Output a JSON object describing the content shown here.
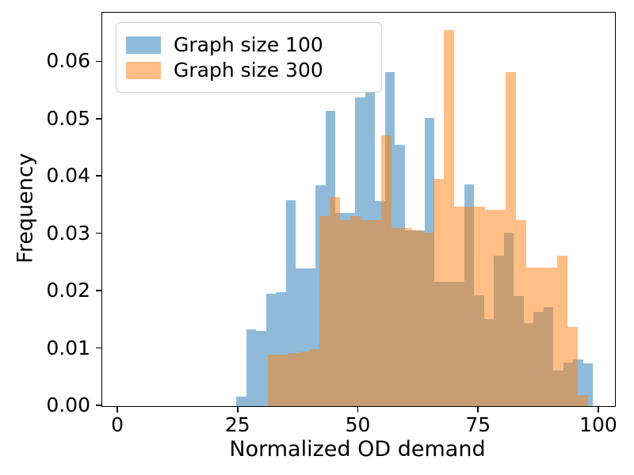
{
  "figure": {
    "xlabel": "Normalized OD demand",
    "ylabel": "Frequency",
    "background_color": "#ffffff",
    "axis_color": "#000000"
  },
  "legend": {
    "items": [
      {
        "label": "Graph size 100",
        "swatch_color": "rgba(31,119,180,0.5)",
        "swatch_hex_on_white": "#8fbbda"
      },
      {
        "label": "Graph size 300",
        "swatch_color": "rgba(255,127,14,0.5)",
        "swatch_hex_on_white": "#ffbf86"
      }
    ],
    "border_color": "#cccccc"
  },
  "axes": {
    "xlim": [
      -3.3,
      103.3
    ],
    "ylim": [
      0,
      0.0686
    ],
    "x_tick_values": [
      0,
      25,
      50,
      75,
      100
    ],
    "x_tick_labels": [
      "0",
      "25",
      "50",
      "75",
      "100"
    ],
    "y_tick_values": [
      0.0,
      0.01,
      0.02,
      0.03,
      0.04,
      0.05,
      0.06
    ],
    "y_tick_labels": [
      "0.00",
      "0.01",
      "0.02",
      "0.03",
      "0.04",
      "0.05",
      "0.06"
    ],
    "grid": false
  },
  "chart_data": {
    "type": "bar",
    "subtype": "overlapping-histograms",
    "title": "",
    "xlabel": "Normalized OD demand",
    "ylabel": "Frequency",
    "legend_position": "upper left",
    "overlap_color_hex": "#c79d72",
    "series": [
      {
        "id": "blue",
        "name": "Graph size 100",
        "color": "rgba(31,119,180,0.5)",
        "base_color_hex": "#1f77b4",
        "alpha": 0.5,
        "bin_start": 24.6,
        "bin_width": 2.06,
        "heights": [
          0.0016,
          0.0134,
          0.0131,
          0.0196,
          0.0199,
          0.0359,
          0.024,
          0.024,
          0.0385,
          0.0515,
          0.0337,
          0.0337,
          0.0538,
          0.0546,
          0.0357,
          0.0582,
          0.0455,
          0.0306,
          0.0306,
          0.0502,
          0.0217,
          0.0217,
          0.0217,
          0.0386,
          0.0193,
          0.0152,
          0.0262,
          0.0302,
          0.0192,
          0.0145,
          0.0164,
          0.0173,
          0.0062,
          0.0076,
          0.0081,
          0.0074
        ]
      },
      {
        "id": "orange",
        "name": "Graph size 300",
        "color": "rgba(255,127,14,0.5)",
        "base_color_hex": "#ff7f0e",
        "alpha": 0.5,
        "bin_start": 31.1,
        "bin_width": 2.15,
        "heights": [
          0.009,
          0.009,
          0.0092,
          0.0095,
          0.0099,
          0.0331,
          0.0364,
          0.0325,
          0.0331,
          0.0325,
          0.0325,
          0.0472,
          0.031,
          0.031,
          0.0306,
          0.0302,
          0.0396,
          0.0656,
          0.0348,
          0.0348,
          0.0348,
          0.0343,
          0.0343,
          0.0582,
          0.0324,
          0.0241,
          0.0241,
          0.0241,
          0.0262,
          0.0138,
          0.0019
        ]
      }
    ]
  }
}
